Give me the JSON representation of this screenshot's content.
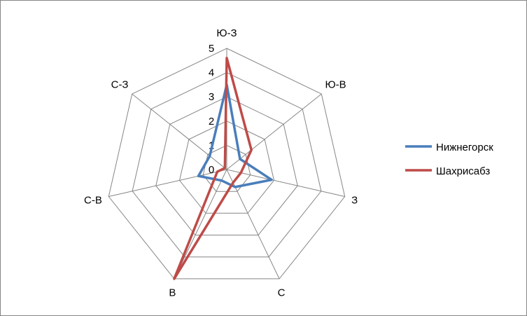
{
  "chart_data": {
    "type": "radar",
    "title": "",
    "categories": [
      "Ю-З",
      "Ю-В",
      "З",
      "С",
      "В",
      "С-В",
      "С-З"
    ],
    "rlim": [
      0,
      5
    ],
    "r_ticks": [
      "0",
      "1",
      "2",
      "3",
      "4",
      "5"
    ],
    "grid": true,
    "legend_position": "right",
    "series": [
      {
        "name": "Нижнегорск",
        "color": "#4a7ebb",
        "values": [
          3.5,
          0.7,
          1.9,
          0.8,
          0.5,
          1.2,
          0.9
        ]
      },
      {
        "name": "Шахрисабз",
        "color": "#be4b48",
        "values": [
          4.6,
          1.3,
          0.6,
          0.6,
          5.0,
          0.4,
          0.1
        ]
      }
    ]
  }
}
